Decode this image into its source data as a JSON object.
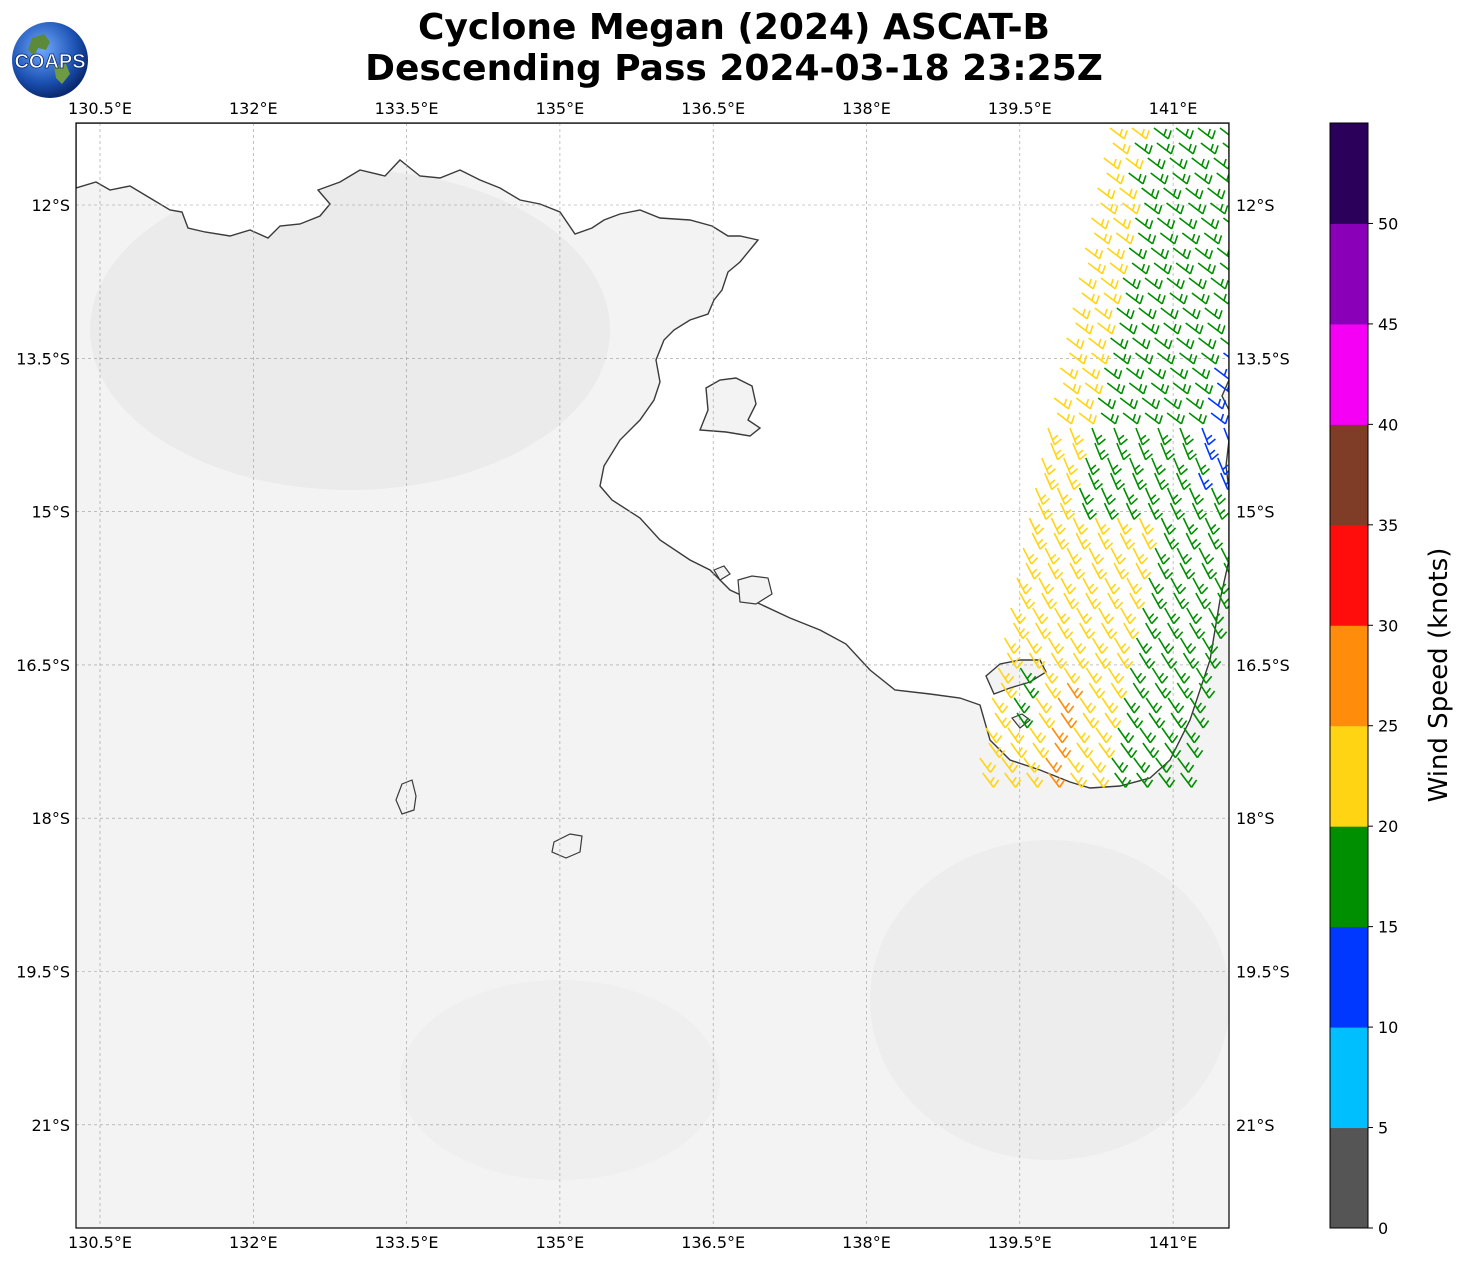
{
  "title": {
    "line1": "Cyclone Megan (2024) ASCAT-B",
    "line2": "Descending Pass 2024-03-18 23:25Z"
  },
  "logo": {
    "text": "COAPS",
    "icon": "globe-logo-icon"
  },
  "map": {
    "lon_ticks": [
      "130.5°E",
      "132°E",
      "133.5°E",
      "135°E",
      "136.5°E",
      "138°E",
      "139.5°E",
      "141°E"
    ],
    "lat_ticks": [
      "12°S",
      "13.5°S",
      "15°S",
      "16.5°S",
      "18°S",
      "19.5°S",
      "21°S"
    ]
  },
  "colorbar": {
    "label": "Wind Speed (knots)",
    "ticks": [
      "0",
      "5",
      "10",
      "15",
      "20",
      "25",
      "30",
      "35",
      "40",
      "45",
      "50"
    ],
    "colors": [
      "#555555",
      "#00bfff",
      "#0038ff",
      "#008f00",
      "#ffd513",
      "#ff8c0a",
      "#ff0d0d",
      "#7f3d28",
      "#f500f5",
      "#8a00b8",
      "#2b005a"
    ]
  },
  "colors": {
    "yellow": "#ffd513",
    "green": "#008f00",
    "blue": "#0038ff",
    "orange": "#ff8c0a",
    "coast": "#3a3a3a",
    "land": "#f2f2f2"
  }
}
